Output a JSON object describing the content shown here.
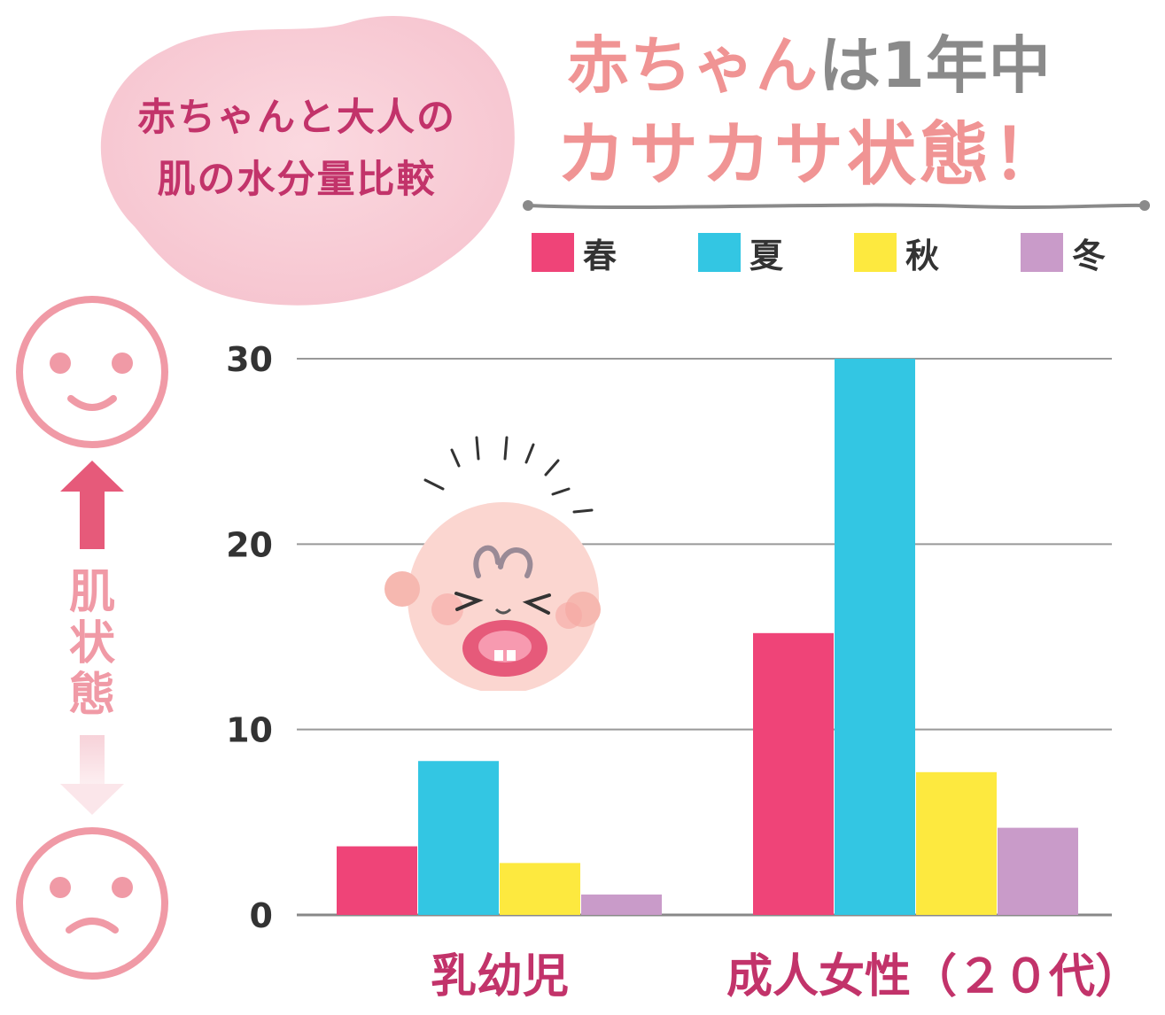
{
  "bubble": {
    "line1": "赤ちゃんと大人の",
    "line2": "肌の水分量比較"
  },
  "headline": {
    "part1": "赤ちゃん",
    "part2": "は1年中",
    "line2": "カサカサ状態！"
  },
  "side_label": [
    "肌",
    "状",
    "態"
  ],
  "icons": {
    "top": "smiling-face-icon",
    "bottom": "frowning-face-icon",
    "arrow_up": "arrow-up-icon",
    "arrow_down": "arrow-down-icon",
    "baby": "crying-baby-illustration"
  },
  "colors": {
    "spring": "#ef4478",
    "summer": "#33c6e3",
    "autumn": "#fde93f",
    "winter": "#c99bc9",
    "accent": "#c2336a",
    "title_pink": "#f09494"
  },
  "chart_data": {
    "type": "bar",
    "categories": [
      "乳幼児",
      "成人女性（２０代）"
    ],
    "series": [
      {
        "name": "春",
        "color": "#ef4478",
        "values": [
          3.7,
          15.2
        ]
      },
      {
        "name": "夏",
        "color": "#33c6e3",
        "values": [
          8.3,
          31.0
        ]
      },
      {
        "name": "秋",
        "color": "#fde93f",
        "values": [
          2.8,
          7.7
        ]
      },
      {
        "name": "冬",
        "color": "#c99bc9",
        "values": [
          1.1,
          4.7
        ]
      }
    ],
    "yticks": [
      "0",
      "10",
      "20",
      "30"
    ],
    "ylim": [
      0,
      30
    ],
    "grid": true,
    "legend": "top-right"
  }
}
